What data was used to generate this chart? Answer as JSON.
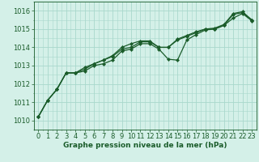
{
  "xlabel": "Graphe pression niveau de la mer (hPa)",
  "xlim": [
    -0.5,
    23.5
  ],
  "ylim": [
    1009.5,
    1016.5
  ],
  "yticks": [
    1010,
    1011,
    1012,
    1013,
    1014,
    1015,
    1016
  ],
  "xticks": [
    0,
    1,
    2,
    3,
    4,
    5,
    6,
    7,
    8,
    9,
    10,
    11,
    12,
    13,
    14,
    15,
    16,
    17,
    18,
    19,
    20,
    21,
    22,
    23
  ],
  "bg_color": "#d4f0e8",
  "grid_color": "#a8d8cc",
  "line_color": "#1a5c2a",
  "lines": [
    [
      1010.2,
      1011.1,
      1011.7,
      1012.6,
      1012.6,
      1012.8,
      1013.1,
      1013.3,
      1013.5,
      1013.9,
      1014.0,
      1014.3,
      1014.3,
      1014.0,
      1014.0,
      1014.4,
      1014.6,
      1014.8,
      1015.0,
      1015.0,
      1015.2,
      1015.8,
      1015.9,
      1015.5
    ],
    [
      1010.2,
      1011.1,
      1011.7,
      1012.6,
      1012.6,
      1012.7,
      1013.0,
      1013.1,
      1013.3,
      1013.8,
      1013.9,
      1014.2,
      1014.2,
      1013.9,
      1013.35,
      1013.3,
      1014.4,
      1014.7,
      1014.95,
      1015.0,
      1015.2,
      1015.6,
      1015.85,
      1015.45
    ],
    [
      1010.2,
      1011.1,
      1011.7,
      1012.6,
      1012.6,
      1012.9,
      1013.1,
      1013.3,
      1013.55,
      1014.0,
      1014.2,
      1014.35,
      1014.35,
      1014.0,
      1014.0,
      1014.45,
      1014.65,
      1014.85,
      1015.0,
      1015.05,
      1015.25,
      1015.85,
      1015.95,
      1015.5
    ]
  ],
  "marker": "D",
  "markersize": 2.2,
  "linewidth": 0.9,
  "font_color": "#1a5c2a",
  "font_size": 6.5,
  "tick_font_size": 6.0
}
